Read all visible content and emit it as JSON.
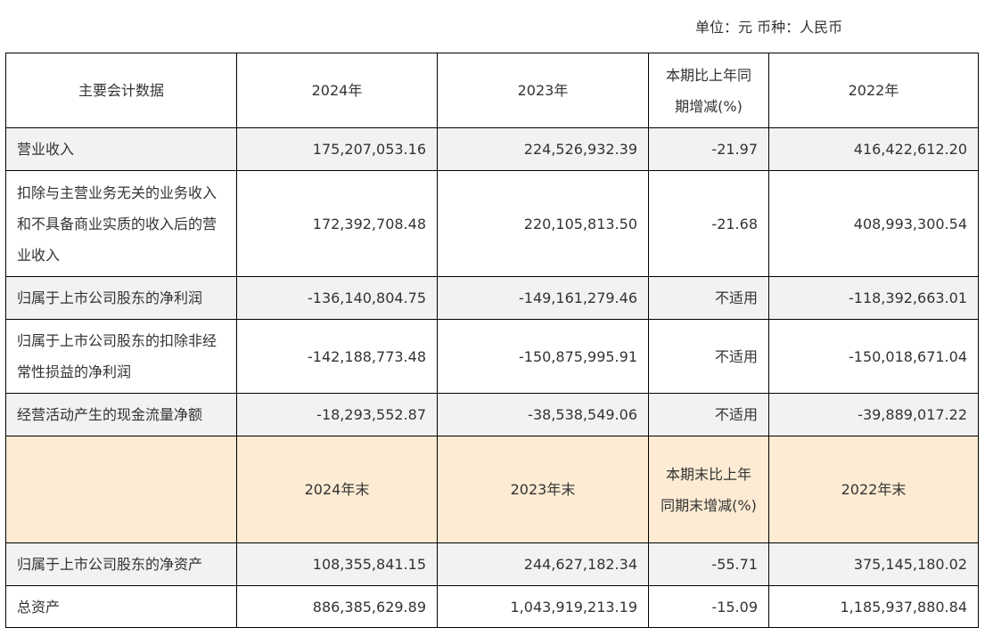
{
  "unit_text": "单位：元 币种：人民币",
  "copy_icon": "copy-icon",
  "header": {
    "col0": "主要会计数据",
    "col1": "2024年",
    "col2": "2023年",
    "col3": "本期比上年同期增减(%)",
    "col4": "2022年"
  },
  "rows_a": [
    {
      "label": "营业收入",
      "v2024": "175,207,053.16",
      "v2023": "224,526,932.39",
      "change": "-21.97",
      "v2022": "416,422,612.20"
    },
    {
      "label": "扣除与主营业务无关的业务收入和不具备商业实质的收入后的营业收入",
      "v2024": "172,392,708.48",
      "v2023": "220,105,813.50",
      "change": "-21.68",
      "v2022": "408,993,300.54"
    },
    {
      "label": "归属于上市公司股东的净利润",
      "v2024": "-136,140,804.75",
      "v2023": "-149,161,279.46",
      "change": "不适用",
      "v2022": "-118,392,663.01"
    },
    {
      "label": "归属于上市公司股东的扣除非经常性损益的净利润",
      "v2024": "-142,188,773.48",
      "v2023": "-150,875,995.91",
      "change": "不适用",
      "v2022": "-150,018,671.04"
    },
    {
      "label": "经营活动产生的现金流量净额",
      "v2024": "-18,293,552.87",
      "v2023": "-38,538,549.06",
      "change": "不适用",
      "v2022": "-39,889,017.22"
    }
  ],
  "header2": {
    "col0": "",
    "col1": "2024年末",
    "col2": "2023年末",
    "col3": "本期末比上年同期末增减(%)",
    "col4": "2022年末"
  },
  "rows_b": [
    {
      "label": "归属于上市公司股东的净资产",
      "v2024": "108,355,841.15",
      "v2023": "244,627,182.34",
      "change": "-55.71",
      "v2022": "375,145,180.02"
    },
    {
      "label": "总资产",
      "v2024": "886,385,629.89",
      "v2023": "1,043,919,213.19",
      "change": "-15.09",
      "v2022": "1,185,937,880.84"
    }
  ]
}
